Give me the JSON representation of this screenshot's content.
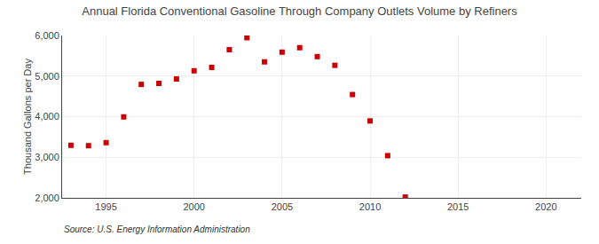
{
  "chart_data": {
    "type": "scatter",
    "title": "Annual Florida Conventional Gasoline Through Company Outlets Volume by Refiners",
    "ylabel": "Thousand Gallons per Day",
    "annotations": [
      "Source: U.S. Energy Information Administration"
    ],
    "x": [
      1993,
      1994,
      1995,
      1996,
      1997,
      1998,
      1999,
      2000,
      2001,
      2002,
      2003,
      2004,
      2005,
      2006,
      2007,
      2008,
      2009,
      2010,
      2011,
      2012
    ],
    "values": [
      3295,
      3285,
      3360,
      3995,
      4795,
      4820,
      4930,
      5130,
      5215,
      5650,
      5945,
      5350,
      5590,
      5700,
      5480,
      5265,
      4545,
      3895,
      3040,
      2020
    ],
    "color": "#cc0000",
    "marker": "square",
    "xlim": [
      1992.5,
      2022
    ],
    "xticks": [
      1995,
      2000,
      2005,
      2010,
      2015,
      2020
    ],
    "ylim": [
      2000,
      6000
    ],
    "yticks": [
      {
        "value": 2000,
        "label": "2,000"
      },
      {
        "value": 3000,
        "label": "3,000"
      },
      {
        "value": 4000,
        "label": "4,000"
      },
      {
        "value": 5000,
        "label": "5,000"
      },
      {
        "value": 6000,
        "label": "6,000"
      }
    ],
    "grid": true
  }
}
